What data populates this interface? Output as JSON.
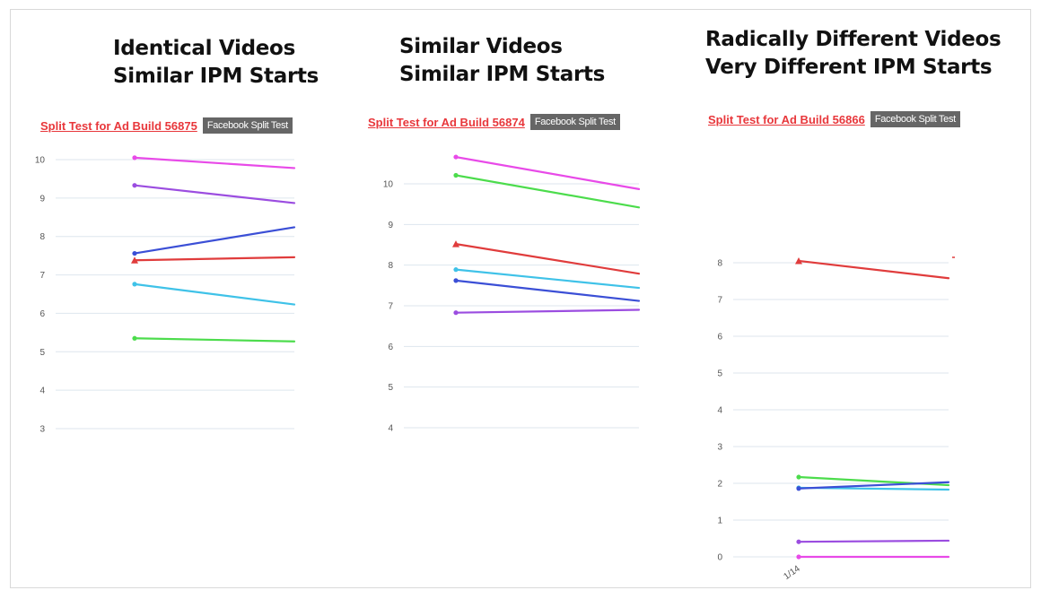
{
  "headings": [
    {
      "line1": "Identical Videos",
      "line2": "Similar IPM Starts"
    },
    {
      "line1": "Similar Videos",
      "line2": "Similar IPM Starts"
    },
    {
      "line1": "Radically Different Videos",
      "line2": "Very Different IPM Starts"
    }
  ],
  "subtitles": [
    {
      "link": "Split Test for Ad Build 56875",
      "badge": "Facebook Split Test"
    },
    {
      "link": "Split Test for Ad Build 56874",
      "badge": "Facebook Split Test"
    },
    {
      "link": "Split Test for Ad Build 56866",
      "badge": "Facebook Split Test"
    }
  ],
  "chart_data": [
    {
      "type": "line",
      "title": "Split Test for Ad Build 56875",
      "yticks": [
        10,
        9,
        8,
        7,
        6,
        5,
        4,
        3
      ],
      "ylim": [
        3,
        10
      ],
      "x_labels": [],
      "grid": true,
      "series": [
        {
          "color": "#e84ae8",
          "values": [
            10.05,
            9.78
          ],
          "start_marker": "circle"
        },
        {
          "color": "#9b4de0",
          "values": [
            9.33,
            8.87
          ],
          "start_marker": "circle"
        },
        {
          "color": "#3b4fd6",
          "values": [
            7.56,
            8.24
          ],
          "start_marker": "circle"
        },
        {
          "color": "#e03c3c",
          "values": [
            7.38,
            7.46
          ],
          "start_marker": "triangle"
        },
        {
          "color": "#3fc2e8",
          "values": [
            6.76,
            6.23
          ],
          "start_marker": "circle"
        },
        {
          "color": "#4cdc4c",
          "values": [
            5.35,
            5.27
          ],
          "start_marker": "circle"
        }
      ]
    },
    {
      "type": "line",
      "title": "Split Test for Ad Build 56874",
      "yticks": [
        10,
        9,
        8,
        7,
        6,
        5,
        4
      ],
      "ylim": [
        4,
        10
      ],
      "x_labels": [],
      "grid": true,
      "series": [
        {
          "color": "#e84ae8",
          "values": [
            10.66,
            9.87
          ],
          "start_marker": "circle"
        },
        {
          "color": "#4cdc4c",
          "values": [
            10.21,
            9.42
          ],
          "start_marker": "circle"
        },
        {
          "color": "#e03c3c",
          "values": [
            8.52,
            7.79
          ],
          "start_marker": "triangle"
        },
        {
          "color": "#3fc2e8",
          "values": [
            7.89,
            7.44
          ],
          "start_marker": "circle"
        },
        {
          "color": "#3b4fd6",
          "values": [
            7.62,
            7.12
          ],
          "start_marker": "circle"
        },
        {
          "color": "#9b4de0",
          "values": [
            6.83,
            6.9
          ],
          "start_marker": "circle"
        }
      ]
    },
    {
      "type": "line",
      "title": "Split Test for Ad Build 56866",
      "yticks": [
        8,
        7,
        6,
        5,
        4,
        3,
        2,
        1,
        0
      ],
      "ylim": [
        0,
        8
      ],
      "x_labels": [
        "1/14"
      ],
      "grid": true,
      "series": [
        {
          "color": "#e03c3c",
          "values": [
            8.05,
            7.58
          ],
          "start_marker": "triangle"
        },
        {
          "color": "#4cdc4c",
          "values": [
            2.17,
            1.95
          ],
          "start_marker": "circle"
        },
        {
          "color": "#3fc2e8",
          "values": [
            1.88,
            1.83
          ],
          "start_marker": "circle"
        },
        {
          "color": "#3b4fd6",
          "values": [
            1.86,
            2.03
          ],
          "start_marker": "circle"
        },
        {
          "color": "#9b4de0",
          "values": [
            0.41,
            0.44
          ],
          "start_marker": "circle"
        },
        {
          "color": "#e84ae8",
          "values": [
            0.0,
            0.0
          ],
          "start_marker": "circle"
        }
      ]
    }
  ]
}
